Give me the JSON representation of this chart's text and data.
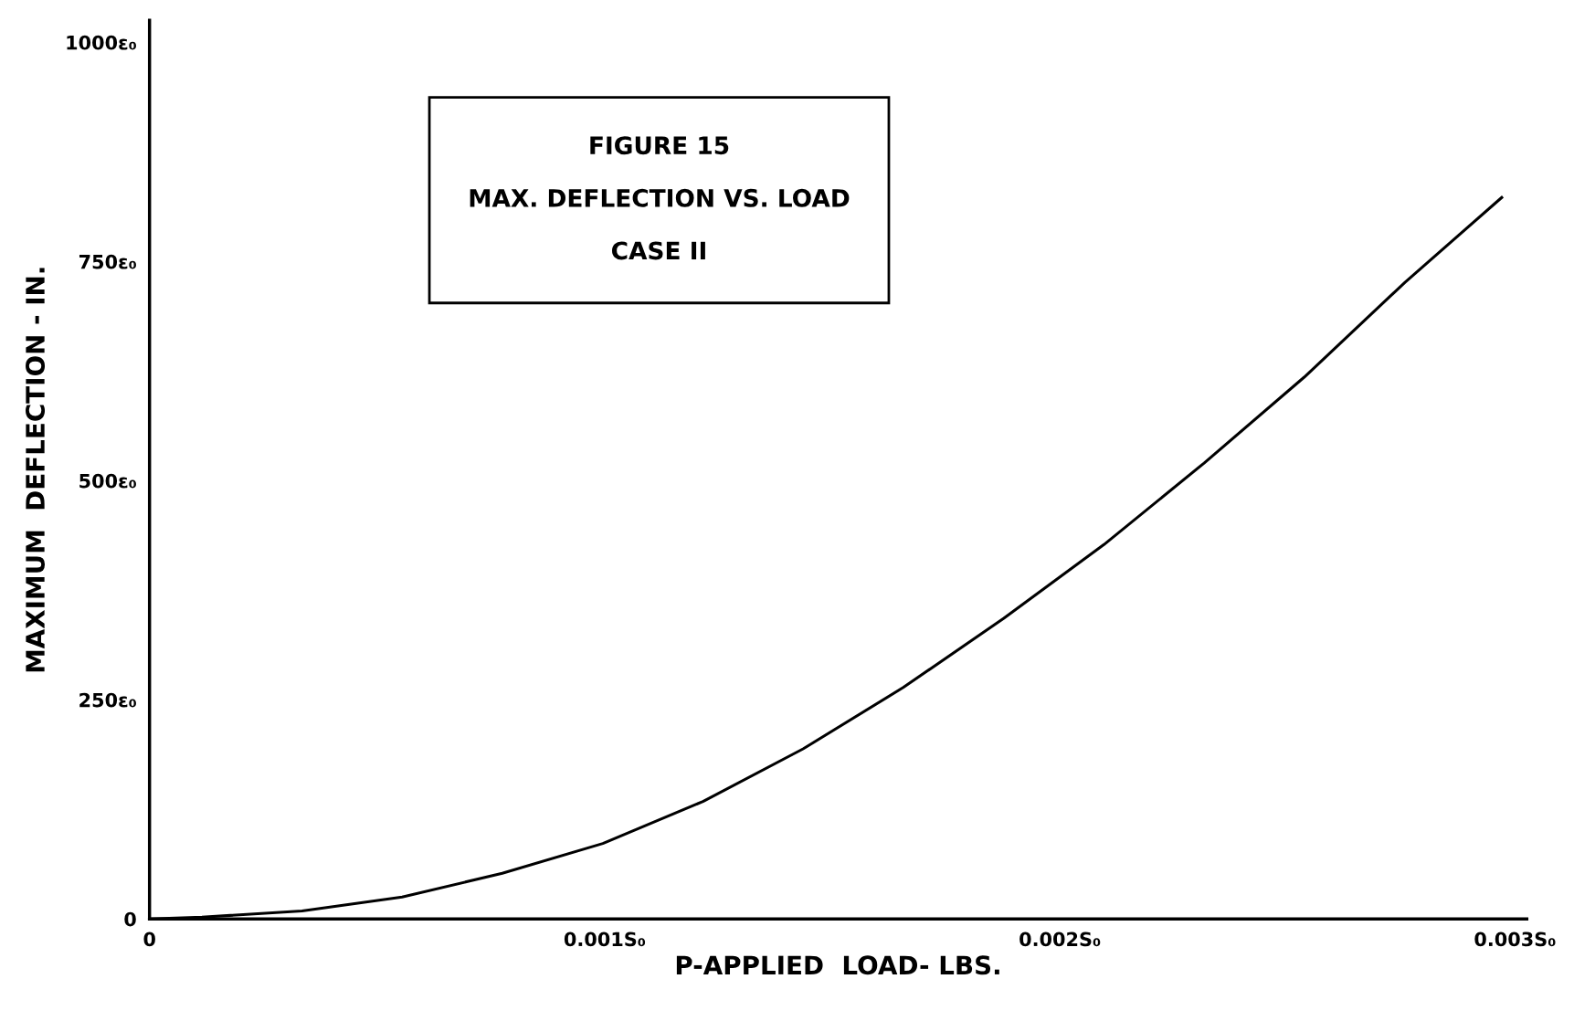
{
  "chart_data": {
    "type": "line",
    "title": "FIGURE 15\nMAX. DEFLECTION VS. LOAD\nCASE II",
    "xlabel": "P-APPLIED  LOAD- LBS.",
    "ylabel": "MAXIMUM  DEFLECTION - IN.",
    "x": [
      0,
      0.000115,
      0.000335,
      0.000555,
      0.000775,
      0.000996,
      0.001216,
      0.001436,
      0.001656,
      0.001877,
      0.002097,
      0.002317,
      0.002537,
      0.002758,
      0.002971
    ],
    "series": [
      {
        "color": "#000000",
        "values": [
          0,
          2,
          9,
          25,
          52,
          86,
          134,
          194,
          264,
          343,
          427,
          520,
          618,
          726,
          823
        ]
      }
    ],
    "xlim": [
      0,
      0.003026
    ],
    "ylim": [
      0,
      1025
    ],
    "xticks": [
      {
        "value": 0,
        "label": "0"
      },
      {
        "value": 0.001,
        "label": "0.001S₀"
      },
      {
        "value": 0.002,
        "label": "0.002S₀"
      },
      {
        "value": 0.003,
        "label": "0.003S₀"
      }
    ],
    "yticks": [
      {
        "value": 0,
        "label": "0"
      },
      {
        "value": 250,
        "label": "250ε₀"
      },
      {
        "value": 500,
        "label": "500ε₀"
      },
      {
        "value": 750,
        "label": "750ε₀"
      },
      {
        "value": 1000,
        "label": "1000ε₀"
      }
    ],
    "grid": false,
    "marker": "none",
    "line_style": "solid"
  }
}
